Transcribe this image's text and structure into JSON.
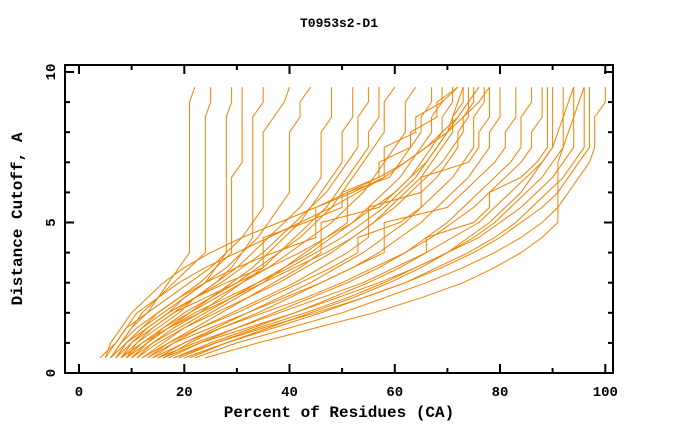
{
  "chart_data": {
    "type": "line",
    "title": "T0953s2-D1",
    "xlabel": "Percent of Residues (CA)",
    "ylabel": "Distance Cutoff, A",
    "xlim": [
      0,
      100
    ],
    "ylim": [
      0,
      10
    ],
    "grid": false,
    "legend": "none",
    "style": {
      "line_color": "#f08200",
      "axis_color": "#000000",
      "background": "#ffffff"
    },
    "x_ticks": {
      "major_values": [
        0,
        20,
        40,
        60,
        80,
        100
      ],
      "major_labels": [
        "0",
        "20",
        "40",
        "60",
        "80",
        "100"
      ],
      "minor_values": [
        10,
        30,
        50,
        70,
        90
      ]
    },
    "y_ticks": {
      "major_values": [
        0,
        5,
        10
      ],
      "major_labels": [
        "0",
        "5",
        "10"
      ],
      "minor_values": [
        1,
        2,
        3,
        4,
        6,
        7,
        8,
        9
      ]
    },
    "cutoffs": [
      0.5,
      1,
      1.5,
      2,
      2.5,
      3,
      3.5,
      4,
      4.5,
      5,
      5.5,
      6,
      6.5,
      7,
      7.5,
      8,
      8.5,
      9,
      9.5
    ],
    "series": [
      [
        6,
        8,
        10,
        13,
        15,
        17,
        19,
        21,
        21,
        21,
        21,
        21,
        21,
        21,
        21,
        21,
        21,
        21,
        22
      ],
      [
        4,
        7,
        9,
        11,
        15,
        18,
        21,
        24,
        24,
        24,
        24,
        24,
        24,
        24,
        24,
        24,
        24,
        25,
        25
      ],
      [
        7,
        9,
        13,
        17,
        20,
        24,
        26,
        28,
        28,
        28,
        28,
        28,
        28,
        28,
        28,
        28,
        28,
        29,
        29
      ],
      [
        6,
        8,
        11,
        15,
        19,
        23,
        26,
        29,
        29,
        29,
        29,
        29,
        29,
        31,
        31,
        31,
        31,
        31,
        31
      ],
      [
        8,
        11,
        15,
        19,
        22,
        26,
        29,
        31,
        33,
        33,
        33,
        33,
        33,
        33,
        33,
        33,
        33,
        35,
        35
      ],
      [
        5,
        7,
        9,
        13,
        17,
        21,
        25,
        28,
        31,
        33,
        35,
        35,
        35,
        35,
        35,
        35,
        37,
        39,
        40
      ],
      [
        6,
        9,
        12,
        16,
        20,
        24,
        28,
        31,
        34,
        36,
        38,
        40,
        40,
        40,
        40,
        40,
        42,
        42,
        44
      ],
      [
        8,
        10,
        14,
        18,
        22,
        26,
        30,
        33,
        36,
        39,
        42,
        44,
        46,
        46,
        46,
        46,
        48,
        48,
        48
      ],
      [
        9,
        13,
        17,
        21,
        25,
        29,
        33,
        36,
        39,
        42,
        44,
        46,
        48,
        50,
        50,
        50,
        52,
        52,
        52
      ],
      [
        7,
        10,
        13,
        17,
        22,
        27,
        31,
        35,
        38,
        41,
        44,
        47,
        49,
        51,
        53,
        53,
        53,
        55,
        55
      ],
      [
        11,
        14,
        18,
        23,
        27,
        31,
        35,
        38,
        41,
        44,
        47,
        49,
        51,
        53,
        55,
        55,
        57,
        57,
        57
      ],
      [
        10,
        13,
        16,
        20,
        25,
        30,
        34,
        38,
        42,
        45,
        48,
        50,
        52,
        54,
        56,
        58,
        58,
        58,
        60
      ],
      [
        9,
        12,
        16,
        21,
        26,
        31,
        36,
        40,
        44,
        48,
        51,
        54,
        56,
        58,
        60,
        62,
        62,
        62,
        64
      ],
      [
        12,
        16,
        20,
        25,
        30,
        35,
        39,
        43,
        47,
        51,
        51,
        51,
        59,
        61,
        63,
        65,
        65,
        67,
        67
      ],
      [
        10,
        14,
        19,
        24,
        29,
        34,
        39,
        44,
        48,
        52,
        55,
        58,
        61,
        63,
        65,
        67,
        67,
        69,
        69
      ],
      [
        13,
        17,
        22,
        27,
        32,
        37,
        42,
        46,
        46,
        46,
        57,
        60,
        63,
        65,
        67,
        69,
        69,
        71,
        71
      ],
      [
        11,
        15,
        20,
        26,
        32,
        38,
        43,
        48,
        52,
        56,
        59,
        62,
        65,
        67,
        69,
        71,
        71,
        73,
        73
      ],
      [
        14,
        18,
        23,
        29,
        35,
        41,
        46,
        51,
        55,
        55,
        55,
        65,
        68,
        70,
        72,
        72,
        74,
        74,
        74
      ],
      [
        8,
        12,
        17,
        23,
        29,
        35,
        41,
        47,
        52,
        56,
        60,
        63,
        66,
        69,
        71,
        73,
        73,
        75,
        75
      ],
      [
        15,
        20,
        26,
        32,
        38,
        44,
        49,
        54,
        58,
        62,
        65,
        68,
        71,
        73,
        75,
        75,
        75,
        77,
        77
      ],
      [
        12,
        17,
        23,
        30,
        36,
        42,
        48,
        53,
        53,
        61,
        65,
        65,
        65,
        74,
        76,
        76,
        78,
        78,
        78
      ],
      [
        16,
        21,
        27,
        34,
        40,
        46,
        52,
        57,
        61,
        65,
        68,
        71,
        74,
        76,
        78,
        78,
        80,
        80,
        80
      ],
      [
        13,
        18,
        25,
        32,
        39,
        46,
        52,
        58,
        58,
        58,
        70,
        73,
        76,
        79,
        81,
        81,
        83,
        83,
        83
      ],
      [
        17,
        23,
        30,
        37,
        44,
        51,
        57,
        62,
        66,
        70,
        73,
        76,
        79,
        82,
        84,
        84,
        84,
        86,
        86
      ],
      [
        14,
        20,
        27,
        35,
        43,
        50,
        56,
        62,
        67,
        71,
        75,
        78,
        81,
        84,
        86,
        86,
        88,
        88,
        88
      ],
      [
        18,
        25,
        33,
        41,
        48,
        55,
        61,
        66,
        66,
        75,
        78,
        78,
        84,
        87,
        89,
        89,
        89,
        89,
        89
      ],
      [
        15,
        22,
        30,
        38,
        46,
        54,
        60,
        66,
        71,
        76,
        79,
        82,
        85,
        88,
        90,
        90,
        90,
        90,
        90
      ],
      [
        19,
        26,
        34,
        43,
        51,
        58,
        64,
        70,
        75,
        79,
        82,
        85,
        88,
        90,
        92,
        92,
        92,
        92,
        92
      ],
      [
        16,
        23,
        32,
        41,
        49,
        57,
        64,
        70,
        76,
        80,
        84,
        87,
        90,
        92,
        94,
        94,
        94,
        94,
        94
      ],
      [
        20,
        28,
        37,
        46,
        54,
        62,
        68,
        74,
        79,
        83,
        86,
        89,
        92,
        94,
        96,
        96,
        96,
        96,
        96
      ],
      [
        18,
        26,
        35,
        45,
        54,
        62,
        69,
        75,
        80,
        84,
        88,
        91,
        93,
        95,
        97,
        97,
        97,
        97,
        97
      ],
      [
        22,
        30,
        40,
        50,
        58,
        66,
        73,
        79,
        84,
        88,
        91,
        93,
        95,
        97,
        98,
        98,
        98,
        100,
        100
      ],
      [
        24,
        34,
        45,
        56,
        65,
        73,
        79,
        84,
        88,
        91,
        91,
        91,
        91,
        91,
        92,
        93,
        94,
        95,
        96
      ],
      [
        10,
        13,
        17,
        22,
        28,
        34,
        40,
        45,
        50,
        54,
        58,
        61,
        64,
        66,
        68,
        70,
        72,
        74,
        76
      ],
      [
        9,
        11,
        14,
        18,
        24,
        30,
        36,
        42,
        47,
        52,
        56,
        60,
        63,
        66,
        68,
        70,
        71,
        72,
        73
      ],
      [
        7,
        9,
        12,
        15,
        19,
        24,
        30,
        37,
        45,
        45,
        45,
        52,
        58,
        58,
        58,
        64,
        64,
        69,
        72
      ],
      [
        8,
        10,
        13,
        17,
        22,
        28,
        35,
        35,
        35,
        43,
        50,
        50,
        57,
        57,
        63,
        63,
        68,
        68,
        72
      ],
      [
        5,
        6,
        8,
        10,
        13,
        16,
        20,
        25,
        31,
        38,
        45,
        51,
        57,
        62,
        66,
        70,
        73,
        76,
        78
      ],
      [
        6,
        8,
        10,
        12,
        15,
        19,
        24,
        30,
        36,
        42,
        48,
        53,
        58,
        62,
        66,
        69,
        72,
        74,
        76
      ],
      [
        21,
        28,
        36,
        44,
        52,
        59,
        65,
        70,
        74,
        78,
        81,
        84,
        86,
        88,
        90,
        91,
        92,
        93,
        94
      ]
    ]
  }
}
